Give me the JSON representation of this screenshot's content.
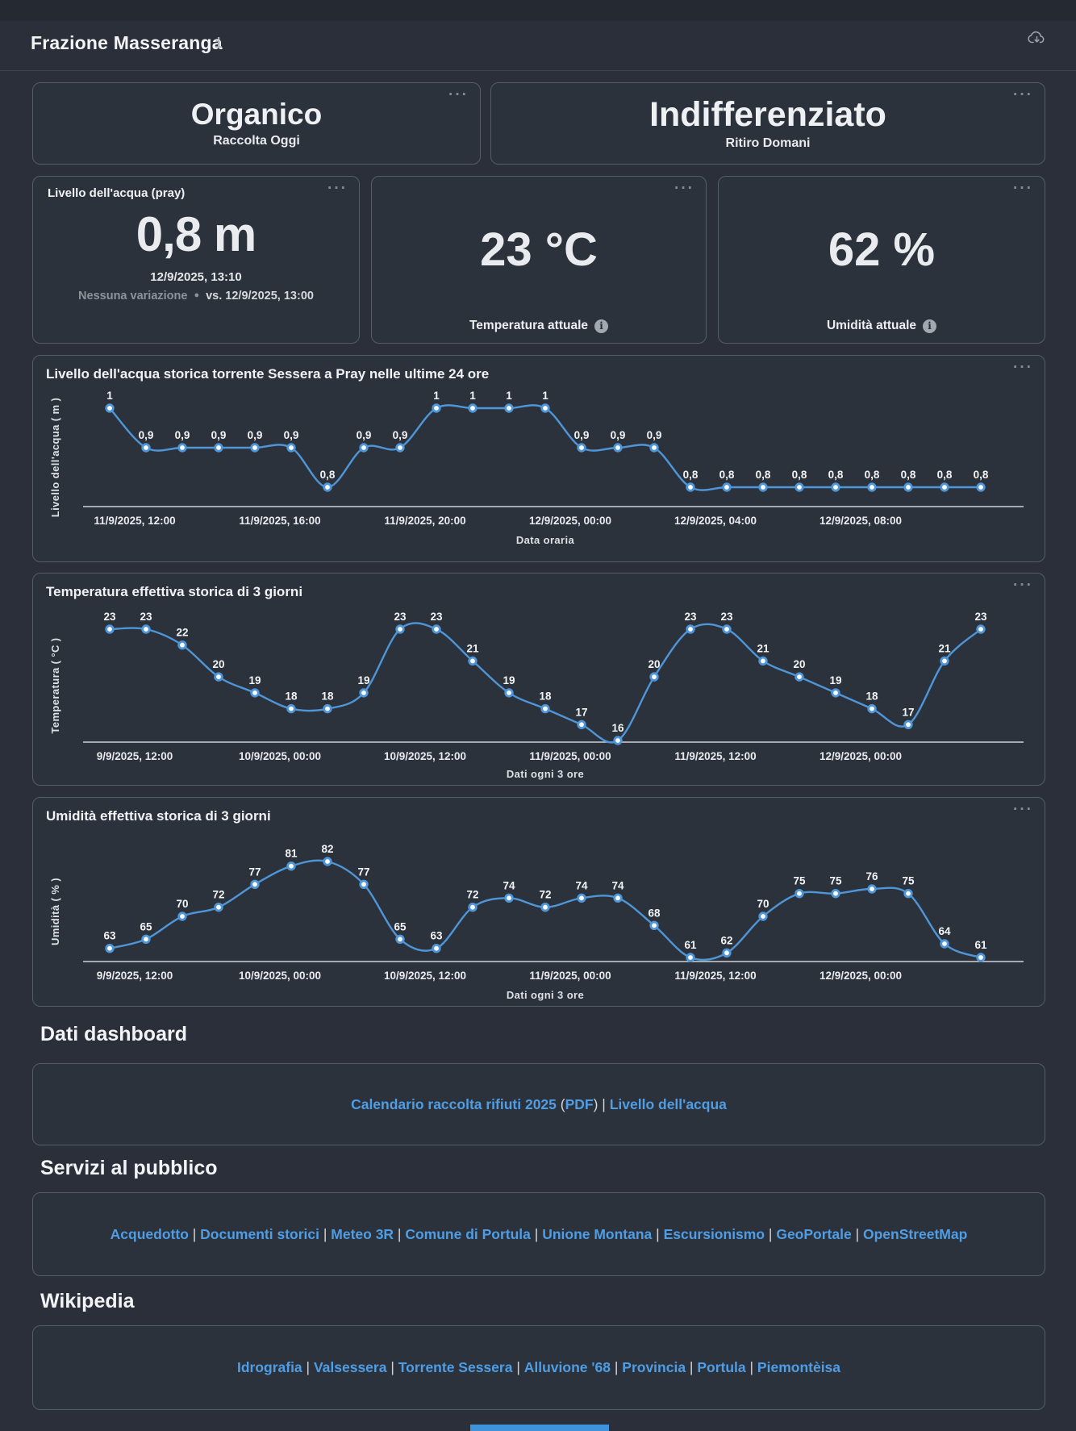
{
  "colors": {
    "page_bg": "#2a2f39",
    "card_border": "#575d66",
    "link_blue": "#4f9de4",
    "chart_line_blue": "#4e96d8",
    "text_gray": "#8d939b",
    "bottom_bar_blue": "#3e93dc"
  },
  "icons": {
    "menu_dots": "···",
    "info": "i",
    "info_filled": "i",
    "cloud_download": "cloud-download"
  },
  "header": {
    "title": "Frazione Masseranga"
  },
  "collection_cards": [
    {
      "title": "Organico",
      "subtitle": "Raccolta Oggi"
    },
    {
      "title": "Indifferenziato",
      "subtitle": "Ritiro Domani"
    }
  ],
  "stat_cards": {
    "water_level": {
      "title": "Livello dell'acqua (pray)",
      "value": "0,8 m",
      "timestamp": "12/9/2025, 13:10",
      "change_label": "Nessuna variazione",
      "change_separator": "●",
      "comparison": "vs. 12/9/2025, 13:00"
    },
    "temperature": {
      "value": "23 °C",
      "label": "Temperatura attuale"
    },
    "humidity": {
      "value": "62 %",
      "label": "Umidità attuale"
    }
  },
  "chart_data": [
    {
      "type": "line",
      "title": "Livello dell'acqua storica torrente Sessera a Pray nelle ultime 24 ore",
      "ylabel": "Livello dell'acqua ( m )",
      "xlabel": "Data oraria",
      "ylim": [
        0.8,
        1
      ],
      "grid": false,
      "legend": "none",
      "line_color": "#4e96d8",
      "x_tick_labels": [
        "11/9/2025, 12:00",
        "11/9/2025, 16:00",
        "11/9/2025, 20:00",
        "12/9/2025, 00:00",
        "12/9/2025, 04:00",
        "12/9/2025, 08:00"
      ],
      "values": [
        1,
        0.9,
        0.9,
        0.9,
        0.9,
        0.9,
        0.8,
        0.9,
        0.9,
        1,
        1,
        1,
        1,
        0.9,
        0.9,
        0.9,
        0.8,
        0.8,
        0.8,
        0.8,
        0.8,
        0.8,
        0.8,
        0.8,
        0.8
      ],
      "point_labels": [
        "1",
        "0,9",
        "0,9",
        "0,9",
        "0,9",
        "0,9",
        "0,8",
        "0,9",
        "0,9",
        "1",
        "1",
        "1",
        "1",
        "0,9",
        "0,9",
        "0,9",
        "0,8",
        "0,8",
        "0,8",
        "0,8",
        "0,8",
        "0,8",
        "0,8",
        "0,8",
        "0,8"
      ]
    },
    {
      "type": "line",
      "title": "Temperatura effettiva storica di 3 giorni",
      "ylabel": "Temperatura ( °C )",
      "xlabel": "Dati ogni 3 ore",
      "ylim": [
        16,
        23
      ],
      "grid": false,
      "legend": "none",
      "line_color": "#4e96d8",
      "x_tick_labels": [
        "9/9/2025, 12:00",
        "10/9/2025, 00:00",
        "10/9/2025, 12:00",
        "11/9/2025, 00:00",
        "11/9/2025, 12:00",
        "12/9/2025, 00:00"
      ],
      "values": [
        23,
        23,
        22,
        20,
        19,
        18,
        18,
        19,
        23,
        23,
        21,
        19,
        18,
        17,
        16,
        20,
        23,
        23,
        21,
        20,
        19,
        18,
        17,
        21,
        23
      ],
      "point_labels": [
        "23",
        "23",
        "22",
        "20",
        "19",
        "18",
        "18",
        "19",
        "23",
        "23",
        "21",
        "19",
        "18",
        "17",
        "16",
        "20",
        "23",
        "23",
        "21",
        "20",
        "19",
        "18",
        "17",
        "21",
        "23"
      ]
    },
    {
      "type": "line",
      "title": "Umidità effettiva storica di 3 giorni",
      "ylabel": "Umidità ( % )",
      "xlabel": "Dati ogni 3 ore",
      "ylim": [
        61,
        82
      ],
      "grid": false,
      "legend": "none",
      "line_color": "#4e96d8",
      "x_tick_labels": [
        "9/9/2025, 12:00",
        "10/9/2025, 00:00",
        "10/9/2025, 12:00",
        "11/9/2025, 00:00",
        "11/9/2025, 12:00",
        "12/9/2025, 00:00"
      ],
      "values": [
        63,
        65,
        70,
        72,
        77,
        81,
        82,
        77,
        65,
        63,
        72,
        74,
        72,
        74,
        74,
        68,
        61,
        62,
        70,
        75,
        75,
        76,
        75,
        64,
        61
      ],
      "point_labels": [
        "63",
        "65",
        "70",
        "72",
        "77",
        "81",
        "82",
        "77",
        "65",
        "63",
        "72",
        "74",
        "72",
        "74",
        "74",
        "68",
        "61",
        "62",
        "70",
        "75",
        "75",
        "76",
        "75",
        "64",
        "61"
      ]
    }
  ],
  "sections": [
    {
      "heading": "Dati dashboard",
      "segments": [
        {
          "text": "Calendario raccolta rifiuti 2025",
          "link": true
        },
        {
          "text": " (",
          "link": false
        },
        {
          "text": "PDF",
          "link": true
        },
        {
          "text": ") | ",
          "link": false
        },
        {
          "text": "Livello dell'acqua",
          "link": true
        }
      ]
    },
    {
      "heading": "Servizi al pubblico",
      "segments": [
        {
          "text": "Acquedotto",
          "link": true
        },
        {
          "text": " | ",
          "link": false
        },
        {
          "text": "Documenti storici",
          "link": true
        },
        {
          "text": " | ",
          "link": false
        },
        {
          "text": "Meteo 3R",
          "link": true
        },
        {
          "text": " | ",
          "link": false
        },
        {
          "text": "Comune di Portula",
          "link": true
        },
        {
          "text": " | ",
          "link": false
        },
        {
          "text": "Unione Montana",
          "link": true
        },
        {
          "text": " | ",
          "link": false
        },
        {
          "text": "Escursionismo",
          "link": true
        },
        {
          "text": " | ",
          "link": false
        },
        {
          "text": "GeoPortale",
          "link": true
        },
        {
          "text": " | ",
          "link": false
        },
        {
          "text": "OpenStreetMap",
          "link": true
        }
      ]
    },
    {
      "heading": "Wikipedia",
      "segments": [
        {
          "text": "Idrografia",
          "link": true
        },
        {
          "text": " | ",
          "link": false
        },
        {
          "text": "Valsessera",
          "link": true
        },
        {
          "text": " | ",
          "link": false
        },
        {
          "text": "Torrente Sessera",
          "link": true
        },
        {
          "text": " | ",
          "link": false
        },
        {
          "text": "Alluvione '68",
          "link": true
        },
        {
          "text": " | ",
          "link": false
        },
        {
          "text": "Provincia",
          "link": true
        },
        {
          "text": " | ",
          "link": false
        },
        {
          "text": "Portula",
          "link": true
        },
        {
          "text": " | ",
          "link": false
        },
        {
          "text": "Piemontèisa",
          "link": true
        }
      ]
    }
  ]
}
